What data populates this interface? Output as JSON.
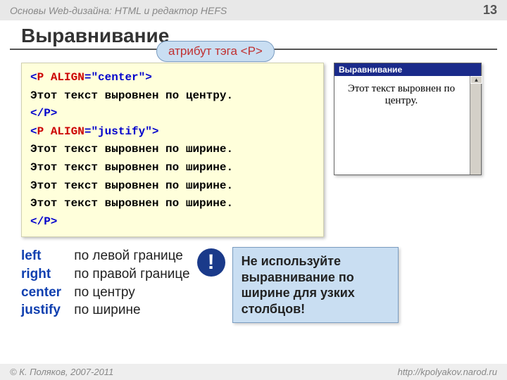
{
  "header": {
    "course": "Основы Web-дизайна: HTML и редактор HEFS",
    "page_number": "13"
  },
  "title": "Выравнивание",
  "callout": "атрибут тэга <P>",
  "code": {
    "line1_open": "<",
    "line1_tag": "P ALIGN",
    "line1_eq": "=",
    "line1_val": "\"center\"",
    "line1_close": ">",
    "line2": "Этот текст выровнен по центру.",
    "line3": "</P>",
    "line4_open": "<",
    "line4_tag": "P ALIGN",
    "line4_eq": "=",
    "line4_val": "\"justify\"",
    "line4_close": ">",
    "line5": "Этот текст выровнен по ширине.",
    "line6": "Этот текст выровнен по ширине.",
    "line7": "Этот текст выровнен по ширине.",
    "line8": "Этот текст выровнен по ширине.",
    "line9": "</P>"
  },
  "preview": {
    "title": "Выравнивание",
    "body": "Этот текст выровнен по центру."
  },
  "values": [
    {
      "key": "left",
      "desc": "по левой границе"
    },
    {
      "key": "right",
      "desc": "по правой границе"
    },
    {
      "key": "center",
      "desc": "по центру"
    },
    {
      "key": "justify",
      "desc": "по ширине"
    }
  ],
  "warning": {
    "mark": "!",
    "text": "Не используйте выравнивание по ширине для узких столбцов!"
  },
  "footer": {
    "copyright": "© К. Поляков, 2007-2011",
    "url": "http://kpolyakov.narod.ru"
  }
}
